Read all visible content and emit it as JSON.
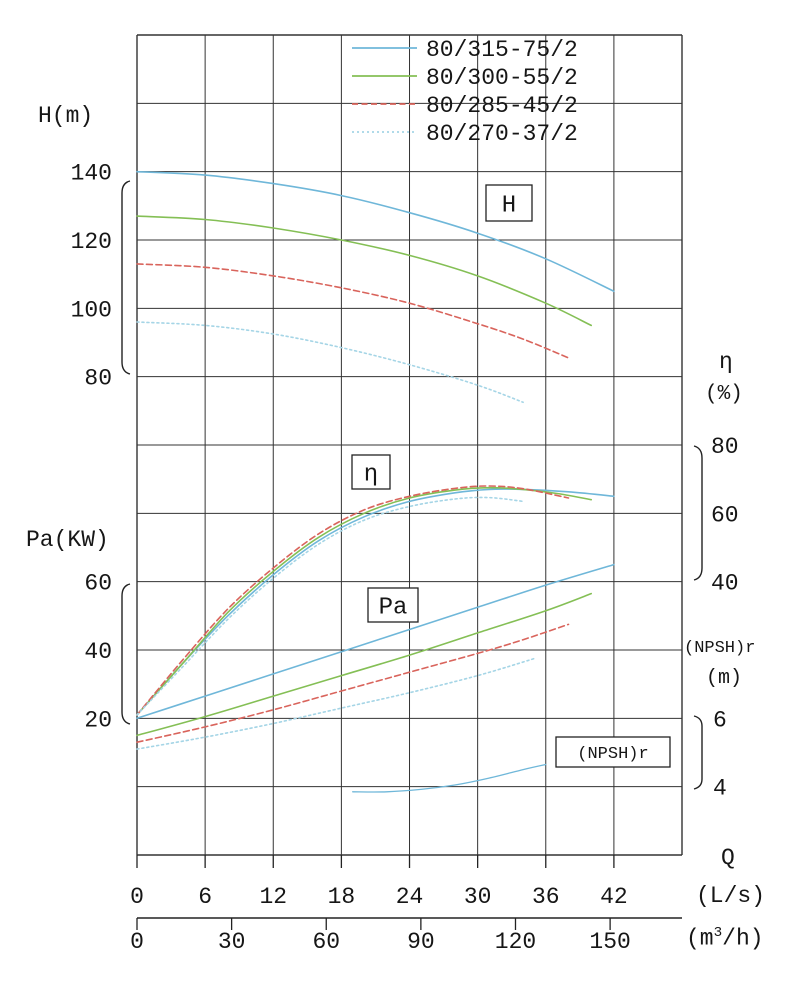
{
  "labels": {
    "h_axis": "H(m)",
    "pa_axis": "Pa(KW)",
    "eta_symbol": "η",
    "eta_unit": "(%)",
    "npsh_label": "(NPSH)r",
    "npsh_unit": "(m)",
    "q_label": "Q",
    "q_unit_ls": "(L/s)",
    "q_unit_m3h_open": "(m",
    "q_unit_m3h_sup": "3",
    "q_unit_m3h_close": "/h)"
  },
  "annotations": [
    {
      "label": "H"
    },
    {
      "label": "η"
    },
    {
      "label": "Pa"
    },
    {
      "label": "(NPSH)r"
    }
  ],
  "chart_data": {
    "type": "line",
    "title": "",
    "x_axis": {
      "label": "Q",
      "units": [
        "L/s",
        "m3/h"
      ],
      "ticks_ls": [
        0,
        6,
        12,
        18,
        24,
        30,
        36,
        42
      ],
      "ticks_m3h": [
        0,
        30,
        60,
        90,
        120,
        150
      ],
      "range_ls": [
        0,
        48
      ],
      "grid": true
    },
    "y_axes": {
      "H": {
        "label": "H(m)",
        "ticks": [
          140,
          120,
          100,
          80
        ]
      },
      "Pa": {
        "label": "Pa(KW)",
        "ticks": [
          60,
          40,
          20
        ]
      },
      "eta": {
        "label": "η(%)",
        "ticks": [
          80,
          60,
          40
        ]
      },
      "npsh": {
        "label": "(NPSH)r(m)",
        "ticks": [
          6,
          4
        ]
      }
    },
    "legend_position": "top-right",
    "series": [
      {
        "name": "80/315-75/2",
        "color": "#6fb7d9",
        "dash": "solid",
        "H": [
          [
            0,
            140
          ],
          [
            6,
            139
          ],
          [
            12,
            136.5
          ],
          [
            18,
            133
          ],
          [
            24,
            128
          ],
          [
            30,
            122
          ],
          [
            36,
            114.5
          ],
          [
            42,
            105
          ]
        ],
        "eta": [
          [
            0,
            1
          ],
          [
            4,
            16
          ],
          [
            8,
            30
          ],
          [
            12,
            42
          ],
          [
            16,
            52
          ],
          [
            20,
            59
          ],
          [
            24,
            63.5
          ],
          [
            28,
            66
          ],
          [
            31,
            67
          ],
          [
            34,
            67
          ],
          [
            38,
            66.3
          ],
          [
            42,
            65
          ]
        ],
        "Pa": [
          [
            0,
            20
          ],
          [
            6,
            26.5
          ],
          [
            12,
            33
          ],
          [
            18,
            39.5
          ],
          [
            24,
            46
          ],
          [
            30,
            52.5
          ],
          [
            36,
            59
          ],
          [
            42,
            65
          ]
        ],
        "NPSH": [
          [
            19,
            3.85
          ],
          [
            22,
            3.85
          ],
          [
            25,
            3.92
          ],
          [
            28,
            4.05
          ],
          [
            31,
            4.25
          ],
          [
            34,
            4.5
          ],
          [
            36,
            4.65
          ]
        ]
      },
      {
        "name": "80/300-55/2",
        "color": "#84bf55",
        "dash": "solid",
        "H": [
          [
            0,
            127
          ],
          [
            6,
            126
          ],
          [
            12,
            123.5
          ],
          [
            18,
            120
          ],
          [
            24,
            115.5
          ],
          [
            30,
            109.5
          ],
          [
            36,
            101.5
          ],
          [
            40,
            95
          ]
        ],
        "eta": [
          [
            0,
            1
          ],
          [
            4,
            16
          ],
          [
            8,
            31
          ],
          [
            12,
            43
          ],
          [
            16,
            53
          ],
          [
            20,
            60
          ],
          [
            24,
            64.5
          ],
          [
            28,
            66.8
          ],
          [
            31,
            67.5
          ],
          [
            34,
            67
          ],
          [
            37,
            65.8
          ],
          [
            40,
            64
          ]
        ],
        "Pa": [
          [
            0,
            15
          ],
          [
            6,
            20.5
          ],
          [
            12,
            26.5
          ],
          [
            18,
            32.5
          ],
          [
            24,
            38.5
          ],
          [
            30,
            45
          ],
          [
            36,
            51.5
          ],
          [
            40,
            56.5
          ]
        ]
      },
      {
        "name": "80/285-45/2",
        "color": "#d9645c",
        "dash": "6 3.5",
        "H": [
          [
            0,
            113
          ],
          [
            6,
            112
          ],
          [
            12,
            109.5
          ],
          [
            18,
            106
          ],
          [
            24,
            101.5
          ],
          [
            30,
            95.5
          ],
          [
            34,
            91
          ],
          [
            38,
            85.5
          ]
        ],
        "eta": [
          [
            0,
            1
          ],
          [
            4,
            17
          ],
          [
            8,
            32
          ],
          [
            12,
            44
          ],
          [
            16,
            54
          ],
          [
            20,
            61
          ],
          [
            24,
            65
          ],
          [
            28,
            67.3
          ],
          [
            31,
            68
          ],
          [
            34,
            67.2
          ],
          [
            38,
            64.5
          ]
        ],
        "Pa": [
          [
            0,
            13
          ],
          [
            6,
            17.5
          ],
          [
            12,
            22.5
          ],
          [
            18,
            28
          ],
          [
            24,
            33.5
          ],
          [
            30,
            39
          ],
          [
            34,
            43
          ],
          [
            38,
            47.5
          ]
        ]
      },
      {
        "name": "80/270-37/2",
        "color": "#a5d5e6",
        "dash": "2 3",
        "H": [
          [
            0,
            96
          ],
          [
            6,
            95
          ],
          [
            12,
            92.5
          ],
          [
            18,
            88.5
          ],
          [
            24,
            83.5
          ],
          [
            30,
            77.5
          ],
          [
            34,
            72.5
          ]
        ],
        "eta": [
          [
            0,
            1
          ],
          [
            4,
            15
          ],
          [
            8,
            29
          ],
          [
            12,
            41
          ],
          [
            16,
            51
          ],
          [
            20,
            58
          ],
          [
            24,
            62
          ],
          [
            28,
            64.2
          ],
          [
            31,
            64.6
          ],
          [
            34,
            63.5
          ]
        ],
        "Pa": [
          [
            0,
            11
          ],
          [
            6,
            14.5
          ],
          [
            12,
            18.5
          ],
          [
            18,
            23
          ],
          [
            24,
            27.5
          ],
          [
            30,
            32.5
          ],
          [
            35,
            37.5
          ]
        ]
      }
    ]
  }
}
